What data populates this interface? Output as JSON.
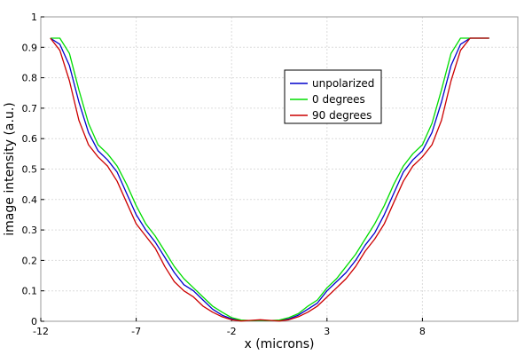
{
  "chart_data": {
    "type": "line",
    "xlabel": "x (microns)",
    "ylabel": "image intensity (a.u.)",
    "xlim": [
      -12,
      13
    ],
    "ylim": [
      0,
      1
    ],
    "x_ticks": [
      -12,
      -7,
      -2,
      3,
      8
    ],
    "y_ticks": [
      0,
      0.1,
      0.2,
      0.3,
      0.4,
      0.5,
      0.6,
      0.7,
      0.8,
      0.9,
      1
    ],
    "x_tick_labels": [
      "-12",
      "-7",
      "-2",
      "3",
      "8"
    ],
    "y_tick_labels": [
      "0",
      "0.1",
      "0.2",
      "0.3",
      "0.4",
      "0.5",
      "0.6",
      "0.7",
      "0.8",
      "0.9",
      "1"
    ],
    "grid": true,
    "legend_position": "upper-center-right",
    "series": [
      {
        "name": "unpolarized",
        "color": "#0000cc",
        "x": [
          -11.5,
          -11.0,
          -10.5,
          -10.0,
          -9.5,
          -9.0,
          -8.5,
          -8.0,
          -7.5,
          -7.0,
          -6.5,
          -6.0,
          -5.5,
          -5.0,
          -4.5,
          -4.0,
          -3.5,
          -3.0,
          -2.5,
          -2.0,
          -1.5,
          -1.0,
          -0.5,
          0.0,
          0.5,
          1.0,
          1.5,
          2.0,
          2.5,
          3.0,
          3.5,
          4.0,
          4.5,
          5.0,
          5.5,
          6.0,
          6.5,
          7.0,
          7.5,
          8.0,
          8.5,
          9.0,
          9.5,
          10.0,
          10.5,
          11.0,
          11.5
        ],
        "y": [
          0.93,
          0.91,
          0.84,
          0.72,
          0.62,
          0.56,
          0.53,
          0.49,
          0.42,
          0.35,
          0.3,
          0.26,
          0.21,
          0.16,
          0.12,
          0.1,
          0.07,
          0.04,
          0.02,
          0.008,
          0.002,
          0.002,
          0.003,
          0.002,
          0.002,
          0.008,
          0.02,
          0.04,
          0.06,
          0.1,
          0.13,
          0.16,
          0.2,
          0.25,
          0.29,
          0.35,
          0.42,
          0.49,
          0.53,
          0.56,
          0.62,
          0.72,
          0.84,
          0.91,
          0.93,
          0.93,
          0.93
        ]
      },
      {
        "name": "0 degrees",
        "color": "#00dd00",
        "x": [
          -11.5,
          -11.0,
          -10.5,
          -10.0,
          -9.5,
          -9.0,
          -8.5,
          -8.0,
          -7.5,
          -7.0,
          -6.5,
          -6.0,
          -5.5,
          -5.0,
          -4.5,
          -4.0,
          -3.5,
          -3.0,
          -2.5,
          -2.0,
          -1.5,
          -1.0,
          -0.5,
          0.0,
          0.5,
          1.0,
          1.5,
          2.0,
          2.5,
          3.0,
          3.5,
          4.0,
          4.5,
          5.0,
          5.5,
          6.0,
          6.5,
          7.0,
          7.5,
          8.0,
          8.5,
          9.0,
          9.5,
          10.0,
          10.5,
          11.0,
          11.5
        ],
        "y": [
          0.93,
          0.93,
          0.88,
          0.76,
          0.65,
          0.58,
          0.55,
          0.51,
          0.45,
          0.38,
          0.32,
          0.28,
          0.23,
          0.18,
          0.14,
          0.11,
          0.08,
          0.05,
          0.03,
          0.012,
          0.004,
          0.002,
          0.003,
          0.002,
          0.004,
          0.012,
          0.025,
          0.05,
          0.07,
          0.11,
          0.14,
          0.18,
          0.22,
          0.27,
          0.32,
          0.38,
          0.45,
          0.51,
          0.55,
          0.58,
          0.65,
          0.76,
          0.88,
          0.93,
          0.93,
          0.93,
          0.93
        ]
      },
      {
        "name": "90 degrees",
        "color": "#cc0000",
        "x": [
          -11.5,
          -11.0,
          -10.5,
          -10.0,
          -9.5,
          -9.0,
          -8.5,
          -8.0,
          -7.5,
          -7.0,
          -6.5,
          -6.0,
          -5.5,
          -5.0,
          -4.5,
          -4.0,
          -3.5,
          -3.0,
          -2.5,
          -2.0,
          -1.5,
          -1.0,
          -0.5,
          0.0,
          0.5,
          1.0,
          1.5,
          2.0,
          2.5,
          3.0,
          3.5,
          4.0,
          4.5,
          5.0,
          5.5,
          6.0,
          6.5,
          7.0,
          7.5,
          8.0,
          8.5,
          9.0,
          9.5,
          10.0,
          10.5,
          11.0,
          11.5
        ],
        "y": [
          0.93,
          0.89,
          0.79,
          0.66,
          0.58,
          0.54,
          0.51,
          0.46,
          0.39,
          0.32,
          0.28,
          0.24,
          0.18,
          0.13,
          0.1,
          0.08,
          0.05,
          0.03,
          0.015,
          0.005,
          0.001,
          0.003,
          0.005,
          0.003,
          0.001,
          0.005,
          0.015,
          0.03,
          0.05,
          0.08,
          0.11,
          0.14,
          0.18,
          0.23,
          0.27,
          0.32,
          0.39,
          0.46,
          0.51,
          0.54,
          0.58,
          0.66,
          0.79,
          0.89,
          0.93,
          0.93,
          0.93
        ]
      }
    ]
  }
}
